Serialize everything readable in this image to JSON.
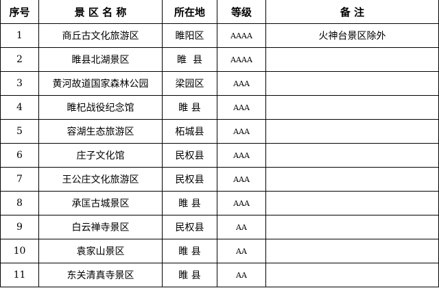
{
  "headers": [
    "序号",
    "景 区 名 称",
    "所在地",
    "等级",
    "备 注"
  ],
  "rows": [
    {
      "no": "1",
      "name": "商丘古文化旅游区",
      "location": "睢阳区",
      "level": "AAAA",
      "note": "火神台景区除外"
    },
    {
      "no": "2",
      "name": "睢县北湖景区",
      "location": "睢  县",
      "level": "AAAA",
      "note": ""
    },
    {
      "no": "3",
      "name": "黄河故道国家森林公园",
      "location": "梁园区",
      "level": "AAA",
      "note": ""
    },
    {
      "no": "4",
      "name": "睢杞战役纪念馆",
      "location": "睢 县",
      "level": "AAA",
      "note": ""
    },
    {
      "no": "5",
      "name": "容湖生态旅游区",
      "location": "柘城县",
      "level": "AAA",
      "note": ""
    },
    {
      "no": "6",
      "name": "庄子文化馆",
      "location": "民权县",
      "level": "AAA",
      "note": ""
    },
    {
      "no": "7",
      "name": "王公庄文化旅游区",
      "location": "民权县",
      "level": "AAA",
      "note": ""
    },
    {
      "no": "8",
      "name": "承匡古城景区",
      "location": "睢 县",
      "level": "AAA",
      "note": ""
    },
    {
      "no": "9",
      "name": "白云禅寺景区",
      "location": "民权县",
      "level": "AA",
      "note": ""
    },
    {
      "no": "10",
      "name": "袁家山景区",
      "location": "睢 县",
      "level": "AA",
      "note": ""
    },
    {
      "no": "11",
      "name": "东关清真寺景区",
      "location": "睢 县",
      "level": "AA",
      "note": ""
    }
  ]
}
